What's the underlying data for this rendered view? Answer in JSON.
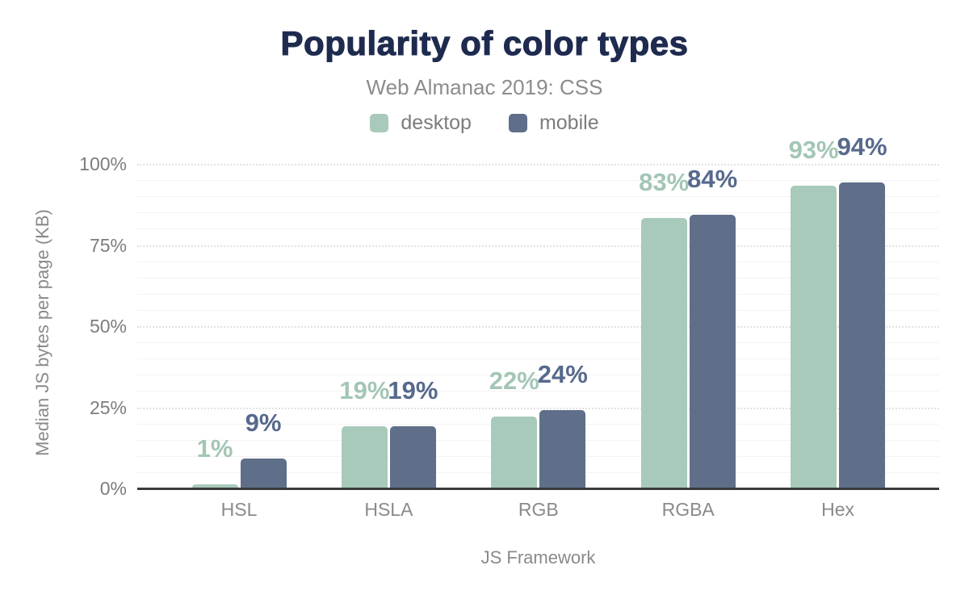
{
  "title": "Popularity of color types",
  "subtitle": "Web Almanac 2019: CSS",
  "legend": {
    "items": [
      {
        "label": "desktop",
        "color": "#a8cabb"
      },
      {
        "label": "mobile",
        "color": "#5f6f8a"
      }
    ]
  },
  "y_axis": {
    "title": "Median JS bytes per page (KB)",
    "tick_labels": [
      "0%",
      "25%",
      "50%",
      "75%",
      "100%"
    ],
    "tick_values": [
      0,
      25,
      50,
      75,
      100
    ]
  },
  "x_axis": {
    "title": "JS Framework"
  },
  "chart_data": {
    "type": "bar",
    "title": "Popularity of color types",
    "subtitle": "Web Almanac 2019: CSS",
    "xlabel": "JS Framework",
    "ylabel": "Median JS bytes per page (KB)",
    "ylim": [
      0,
      100
    ],
    "grid": {
      "minor_step": 5,
      "major_step": 25,
      "visible": true
    },
    "legend_position": "top",
    "categories": [
      "HSL",
      "HSLA",
      "RGB",
      "RGBA",
      "Hex"
    ],
    "series": [
      {
        "name": "desktop",
        "color": "#a8cabb",
        "label_color": "#a3c6b5",
        "values": [
          1,
          19,
          22,
          83,
          93
        ],
        "value_labels": [
          "1%",
          "19%",
          "22%",
          "83%",
          "93%"
        ]
      },
      {
        "name": "mobile",
        "color": "#5f6f8a",
        "label_color": "#57698c",
        "values": [
          9,
          19,
          24,
          84,
          94
        ],
        "value_labels": [
          "9%",
          "19%",
          "24%",
          "84%",
          "94%"
        ]
      }
    ]
  },
  "colors": {
    "title_text": "#1e2b4f",
    "muted_text": "#8a8a8a",
    "axis_line": "#3a3a3a",
    "minor_gridline": "#f3f3f3",
    "major_gridline": "#e2e2e2",
    "background": "#ffffff"
  }
}
